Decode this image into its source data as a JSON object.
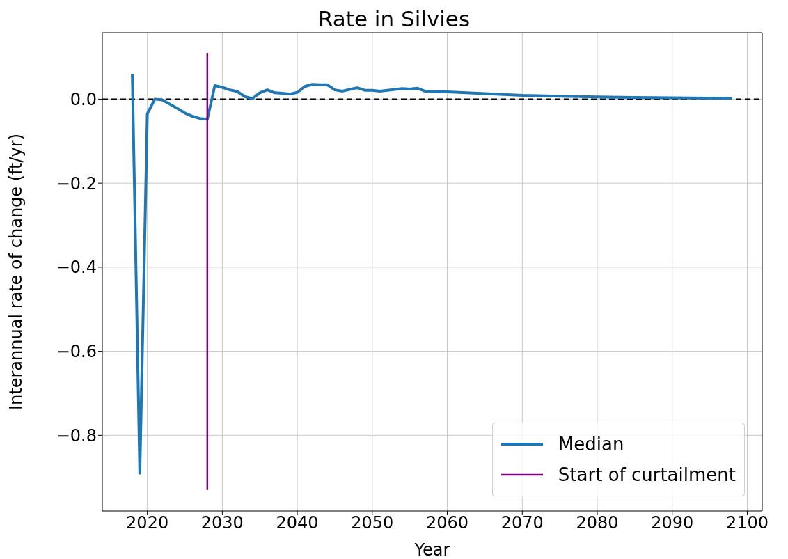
{
  "chart_data": {
    "type": "line",
    "title": "Rate in Silvies",
    "xlabel": "Year",
    "ylabel": "Interannual rate of change (ft/yr)",
    "series": [
      {
        "name": "Median",
        "color": "#1f77b4",
        "x": [
          2018,
          2019,
          2020,
          2021,
          2022,
          2023,
          2024,
          2025,
          2026,
          2027,
          2028,
          2029,
          2030,
          2031,
          2032,
          2033,
          2034,
          2035,
          2036,
          2037,
          2038,
          2039,
          2040,
          2041,
          2042,
          2043,
          2044,
          2045,
          2046,
          2047,
          2048,
          2049,
          2050,
          2051,
          2052,
          2053,
          2054,
          2055,
          2056,
          2057,
          2058,
          2059,
          2060,
          2065,
          2070,
          2075,
          2080,
          2085,
          2090,
          2098
        ],
        "values": [
          0.06,
          -0.89,
          -0.035,
          0.0,
          -0.002,
          -0.012,
          -0.022,
          -0.033,
          -0.041,
          -0.046,
          -0.048,
          0.032,
          0.028,
          0.022,
          0.018,
          0.006,
          0.001,
          0.015,
          0.022,
          0.015,
          0.014,
          0.012,
          0.016,
          0.03,
          0.035,
          0.034,
          0.034,
          0.022,
          0.019,
          0.023,
          0.027,
          0.021,
          0.021,
          0.019,
          0.021,
          0.023,
          0.025,
          0.024,
          0.026,
          0.019,
          0.017,
          0.018,
          0.017,
          0.013,
          0.009,
          0.007,
          0.005,
          0.004,
          0.003,
          0.002
        ]
      },
      {
        "name": "Start of curtailment",
        "color": "#800080",
        "x": [
          2028,
          2028
        ],
        "values": [
          0.11,
          -0.93
        ]
      }
    ],
    "ref_lines": [
      {
        "axis": "y",
        "value": 0,
        "color": "#000000",
        "line_style": "dashed"
      }
    ],
    "xlim": [
      2014,
      2102
    ],
    "xticks": [
      2020,
      2030,
      2040,
      2050,
      2060,
      2070,
      2080,
      2090,
      2100
    ],
    "ylim": [
      -0.98,
      0.158
    ],
    "yticks": [
      {
        "value": -0.8,
        "label": "−0.8"
      },
      {
        "value": -0.6,
        "label": "−0.6"
      },
      {
        "value": -0.4,
        "label": "−0.4"
      },
      {
        "value": -0.2,
        "label": "−0.2"
      },
      {
        "value": 0,
        "label": "0.0"
      }
    ],
    "grid": true,
    "legend": "bottom right",
    "marker": "none",
    "line_style": "solid"
  }
}
